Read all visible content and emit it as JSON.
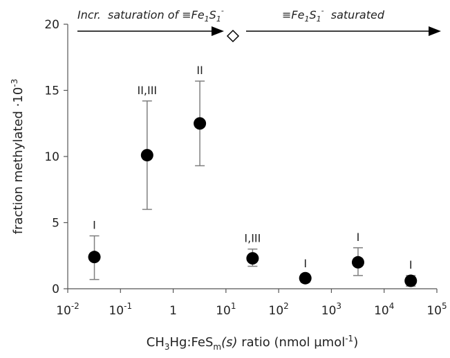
{
  "chart_data": {
    "type": "scatter",
    "x_label_parts": [
      "CH",
      "3",
      "Hg:FeS",
      "m",
      "(s)",
      " ratio (nmol µmol",
      "-1",
      ")"
    ],
    "y_label_parts": [
      "fraction methylated ·10",
      "-3"
    ],
    "annotations": [
      {
        "parts": [
          "Incr.  saturation of ≡Fe",
          "1",
          "S",
          "1",
          "-"
        ]
      },
      {
        "parts": [
          "≡Fe",
          "1",
          "S",
          "1",
          "-",
          "  saturated"
        ]
      }
    ],
    "x": [
      0.032,
      0.32,
      3.2,
      32,
      320,
      3200,
      32000
    ],
    "values": [
      2.4,
      10.1,
      12.5,
      2.3,
      0.8,
      2.0,
      0.6
    ],
    "lower": [
      0.7,
      6.0,
      9.3,
      1.7,
      0.5,
      1.0,
      0.2
    ],
    "upper": [
      4.0,
      14.2,
      15.7,
      3.0,
      1.1,
      3.1,
      1.0
    ],
    "point_labels": [
      "I",
      "II,III",
      "II",
      "I,III",
      "I",
      "I",
      "I"
    ],
    "color": "#000000",
    "error_color": "#7f7f7f",
    "xscale": "log",
    "xlim": [
      0.01,
      100000
    ],
    "xticks": [
      {
        "value": 0.01,
        "label": "10",
        "sup": "-2"
      },
      {
        "value": 0.1,
        "label": "10",
        "sup": "-1"
      },
      1,
      {
        "value": 10,
        "label": "10",
        "sup": "1"
      },
      {
        "value": 100,
        "label": "10",
        "sup": "2"
      },
      {
        "value": 1000,
        "label": "10",
        "sup": "3"
      },
      {
        "value": 10000,
        "label": "10",
        "sup": "4"
      },
      {
        "value": 100000,
        "label": "10",
        "sup": "5"
      }
    ],
    "ylim": [
      0,
      20
    ],
    "yticks": [
      0,
      5,
      10,
      15,
      20
    ],
    "grid": false
  }
}
